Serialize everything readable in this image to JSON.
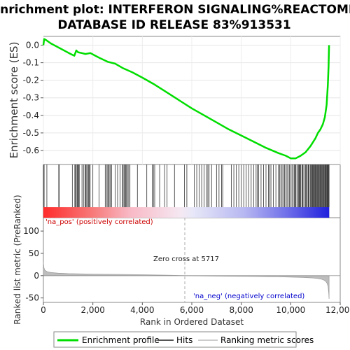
{
  "title_line1": "Enrichment plot: INTERFERON SIGNALING%REACTOME",
  "title_line2": "DATABASE ID RELEASE 83%913531",
  "chart_data": {
    "type": "line",
    "xlabel": "Rank in Ordered Dataset",
    "ylabel_top": "Enrichment score (ES)",
    "ylabel_bottom": "Ranked list metric (PreRanked)",
    "xlim": [
      0,
      12000
    ],
    "x_ticks": [
      0,
      2000,
      4000,
      6000,
      8000,
      10000,
      12000
    ],
    "x_tick_labels": [
      "0",
      "2,000",
      "4,000",
      "6,000",
      "8,000",
      "10,000",
      "12,000"
    ],
    "es_ylim": [
      -0.68,
      0.05
    ],
    "es_ticks": [
      0.0,
      -0.1,
      -0.2,
      -0.3,
      -0.4,
      -0.5,
      -0.6
    ],
    "es_tick_labels": [
      "0.0",
      "-0.1",
      "-0.2",
      "-0.3",
      "-0.4",
      "-0.5",
      "-0.6"
    ],
    "metric_ylim": [
      -60,
      130
    ],
    "metric_ticks": [
      100,
      50,
      0,
      -50
    ],
    "metric_tick_labels": [
      "100",
      "50",
      "0",
      "-50"
    ],
    "n_genes": 11550,
    "zero_cross": 5717,
    "zero_cross_label": "Zero cross at 5717",
    "pos_label": "'na_pos' (positively correlated)",
    "neg_label": "'na_neg' (negatively correlated)",
    "series": [
      {
        "name": "Enrichment profile",
        "color": "#00dd00",
        "x": [
          0,
          30,
          100,
          300,
          500,
          700,
          900,
          1100,
          1250,
          1330,
          1400,
          1550,
          1700,
          1900,
          2100,
          2300,
          2600,
          2900,
          3200,
          3600,
          4000,
          4500,
          5000,
          5500,
          6000,
          6500,
          7000,
          7500,
          8000,
          8500,
          9000,
          9500,
          9800,
          10000,
          10200,
          10400,
          10600,
          10800,
          11000,
          11100,
          11200,
          11300,
          11380,
          11450,
          11500,
          11530,
          11550
        ],
        "y": [
          0.0,
          0.035,
          0.03,
          0.01,
          -0.005,
          -0.02,
          -0.035,
          -0.05,
          -0.06,
          -0.03,
          -0.04,
          -0.045,
          -0.05,
          -0.045,
          -0.06,
          -0.075,
          -0.095,
          -0.105,
          -0.13,
          -0.155,
          -0.185,
          -0.225,
          -0.27,
          -0.315,
          -0.36,
          -0.4,
          -0.44,
          -0.48,
          -0.515,
          -0.55,
          -0.585,
          -0.615,
          -0.63,
          -0.645,
          -0.645,
          -0.63,
          -0.61,
          -0.575,
          -0.53,
          -0.5,
          -0.48,
          -0.45,
          -0.41,
          -0.34,
          -0.23,
          -0.12,
          0.0
        ]
      }
    ],
    "hits": [
      0,
      30,
      140,
      620,
      640,
      1170,
      1270,
      1300,
      1330,
      1370,
      1400,
      1420,
      1450,
      1560,
      1620,
      1680,
      1710,
      1750,
      1800,
      1830,
      1860,
      1890,
      2000,
      2250,
      2500,
      2550,
      2600,
      2640,
      2660,
      2700,
      2760,
      2900,
      3000,
      3100,
      3200,
      3220,
      3260,
      3300,
      3320,
      3360,
      3400,
      3450,
      3500,
      3800,
      4180,
      4400,
      4450,
      4500,
      4700,
      4900,
      5000,
      5300,
      5700,
      5800,
      6100,
      6200,
      6300,
      6400,
      6500,
      6600,
      6650,
      6700,
      6800,
      7000,
      7100,
      7200,
      7250,
      7600,
      7700,
      7800,
      7900,
      8000,
      8100,
      8200,
      8300,
      8400,
      8500,
      8600,
      8650,
      8700,
      8800,
      8900,
      9000,
      9100,
      9150,
      9200,
      9300,
      9400,
      9500,
      9550,
      9600,
      9650,
      9700,
      9750,
      9800,
      9850,
      9900,
      9950,
      10000,
      10050,
      10100,
      10150,
      10180,
      10200,
      10250,
      10300,
      10330,
      10350,
      10380,
      10400,
      10450,
      10480,
      10500,
      10550,
      10600,
      10620,
      10650,
      10700,
      10720,
      10750,
      10800,
      10830,
      10850,
      10880,
      10900,
      10930,
      10950,
      10980,
      11000,
      11030,
      11050,
      11080,
      11100,
      11130,
      11150,
      11180,
      11200,
      11230,
      11250,
      11280,
      11300,
      11330,
      11350,
      11380,
      11400,
      11420,
      11450,
      11470,
      11490,
      11510,
      11530,
      11550
    ],
    "metric_profile": {
      "x": [
        0,
        20,
        60,
        150,
        300,
        600,
        1000,
        2000,
        3000,
        4000,
        5000,
        5717,
        6500,
        7500,
        8500,
        9500,
        10000,
        10500,
        10900,
        11100,
        11250,
        11350,
        11420,
        11470,
        11510,
        11540,
        11550
      ],
      "y": [
        30,
        18,
        12,
        9,
        7,
        5.5,
        4.5,
        3.5,
        2.8,
        2.0,
        1.0,
        0,
        -0.6,
        -1.2,
        -1.8,
        -2.6,
        -3.2,
        -4.0,
        -5.2,
        -6.5,
        -8,
        -10,
        -13,
        -17,
        -24,
        -40,
        -52
      ]
    }
  },
  "legend": {
    "items": [
      {
        "label": "Enrichment profile",
        "color": "#00dd00"
      },
      {
        "label": "Hits",
        "color": "#555555"
      },
      {
        "label": "Ranking metric scores",
        "color": "#cccccc"
      }
    ]
  },
  "colors": {
    "es_line": "#00dd00",
    "pos_text": "#cc0000",
    "neg_text": "#0000cc",
    "bar_red": "#ff2020",
    "bar_blue": "#2020ff"
  }
}
